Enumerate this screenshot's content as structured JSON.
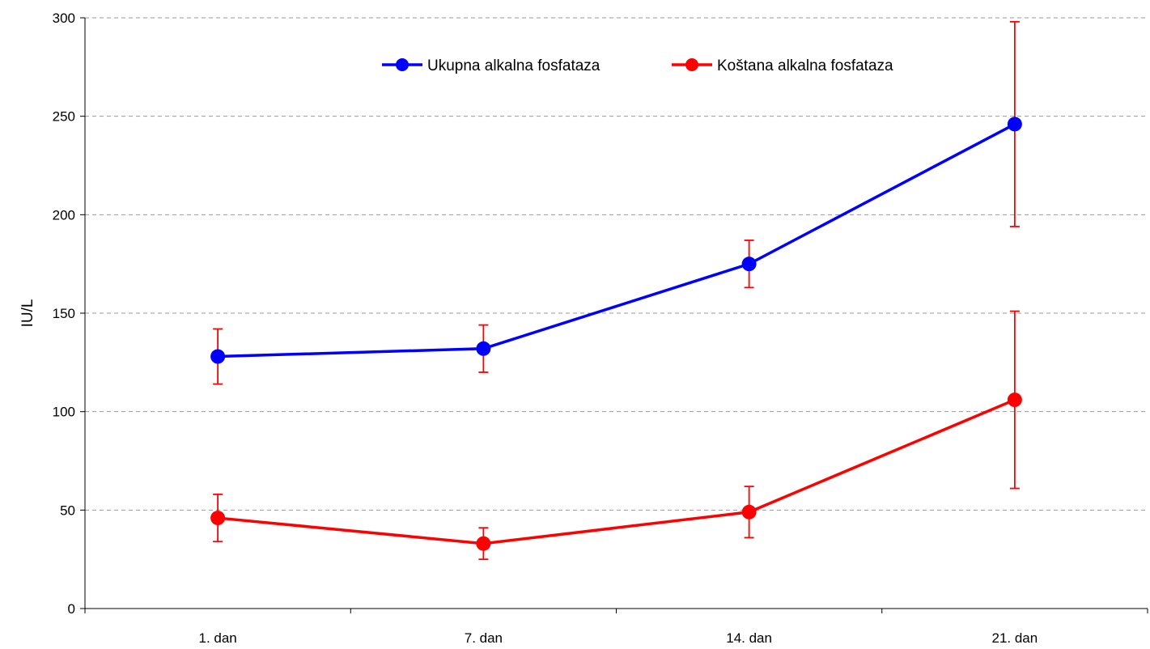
{
  "chart_data": {
    "type": "line",
    "categories": [
      "1. dan",
      "7. dan",
      "14. dan",
      "21. dan"
    ],
    "ylabel": "IU/L",
    "xlabel": "",
    "title": "",
    "ylim": [
      0,
      300
    ],
    "yticks": [
      0,
      50,
      100,
      150,
      200,
      250,
      300
    ],
    "grid": "horizontal dashed",
    "legend_position": "top-center",
    "series": [
      {
        "name": "Ukupna alkalna fosfataza",
        "color": "#0000ff",
        "values": [
          128,
          132,
          175,
          246
        ],
        "error_low": [
          114,
          120,
          163,
          194
        ],
        "error_high": [
          142,
          144,
          187,
          298
        ]
      },
      {
        "name": "Koštana alkalna fosfataza",
        "color": "#ff0000",
        "values": [
          46,
          33,
          49,
          106
        ],
        "error_low": [
          34,
          25,
          36,
          61
        ],
        "error_high": [
          58,
          41,
          62,
          151
        ]
      }
    ],
    "error_bar_color": "#ff0000"
  }
}
